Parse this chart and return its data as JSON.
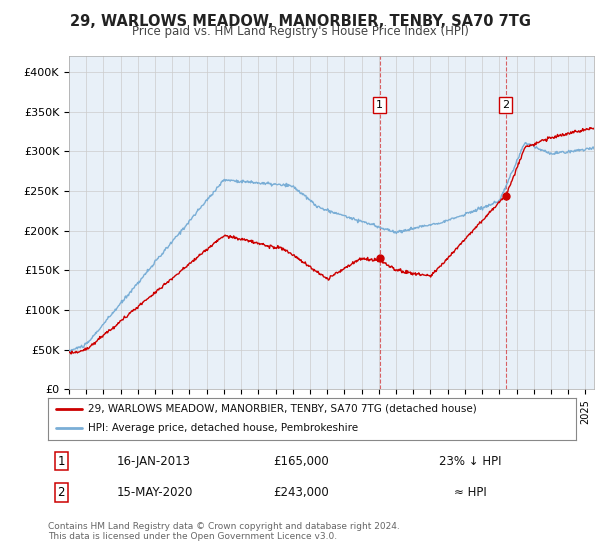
{
  "title": "29, WARLOWS MEADOW, MANORBIER, TENBY, SA70 7TG",
  "subtitle": "Price paid vs. HM Land Registry's House Price Index (HPI)",
  "red_label": "29, WARLOWS MEADOW, MANORBIER, TENBY, SA70 7TG (detached house)",
  "blue_label": "HPI: Average price, detached house, Pembrokeshire",
  "annotation1_label": "1",
  "annotation1_date": "16-JAN-2013",
  "annotation1_price": "£165,000",
  "annotation1_hpi": "23% ↓ HPI",
  "annotation2_label": "2",
  "annotation2_date": "15-MAY-2020",
  "annotation2_price": "£243,000",
  "annotation2_hpi": "≈ HPI",
  "footer": "Contains HM Land Registry data © Crown copyright and database right 2024.\nThis data is licensed under the Open Government Licence v3.0.",
  "ylim": [
    0,
    420000
  ],
  "xlim_start": 1995.0,
  "xlim_end": 2025.5,
  "point1_x": 2013.04,
  "point1_y": 165000,
  "point2_x": 2020.37,
  "point2_y": 243000,
  "red_color": "#cc0000",
  "blue_color": "#7aaed6",
  "bg_color": "#e8f0f8",
  "grid_color": "#cccccc",
  "yticks": [
    0,
    50000,
    100000,
    150000,
    200000,
    250000,
    300000,
    350000,
    400000
  ],
  "ylabels": [
    "£0",
    "£50K",
    "£100K",
    "£150K",
    "£200K",
    "£250K",
    "£300K",
    "£350K",
    "£400K"
  ]
}
